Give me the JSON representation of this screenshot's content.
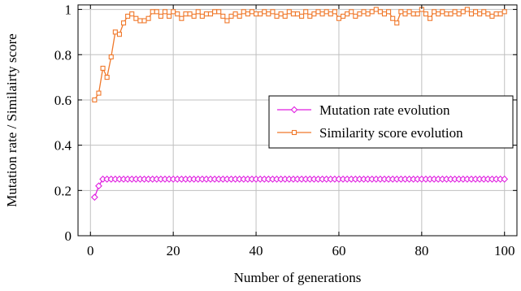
{
  "chart_data": {
    "type": "line",
    "xlabel": "Number of generations",
    "ylabel": "Mutation rate / Similairty score",
    "xlim": [
      -3,
      103
    ],
    "ylim": [
      0,
      1.02
    ],
    "xticks": [
      0,
      20,
      40,
      60,
      80,
      100
    ],
    "yticks": [
      0,
      0.2,
      0.4,
      0.6,
      0.8,
      1
    ],
    "xtick_labels": [
      "0",
      "20",
      "40",
      "60",
      "80",
      "100"
    ],
    "ytick_labels": [
      "0",
      "0.2",
      "0.4",
      "0.6",
      "0.8",
      "1"
    ],
    "grid": true,
    "legend_position": "center-right",
    "series": [
      {
        "name": "Mutation rate evolution",
        "color": "#e01ee0",
        "marker": "diamond",
        "x": [
          1,
          2,
          3,
          4,
          5,
          6,
          7,
          8,
          9,
          10,
          11,
          12,
          13,
          14,
          15,
          16,
          17,
          18,
          19,
          20,
          21,
          22,
          23,
          24,
          25,
          26,
          27,
          28,
          29,
          30,
          31,
          32,
          33,
          34,
          35,
          36,
          37,
          38,
          39,
          40,
          41,
          42,
          43,
          44,
          45,
          46,
          47,
          48,
          49,
          50,
          51,
          52,
          53,
          54,
          55,
          56,
          57,
          58,
          59,
          60,
          61,
          62,
          63,
          64,
          65,
          66,
          67,
          68,
          69,
          70,
          71,
          72,
          73,
          74,
          75,
          76,
          77,
          78,
          79,
          80,
          81,
          82,
          83,
          84,
          85,
          86,
          87,
          88,
          89,
          90,
          91,
          92,
          93,
          94,
          95,
          96,
          97,
          98,
          99,
          100
        ],
        "values": [
          0.17,
          0.22,
          0.25,
          0.25,
          0.25,
          0.25,
          0.25,
          0.25,
          0.25,
          0.25,
          0.25,
          0.25,
          0.25,
          0.25,
          0.25,
          0.25,
          0.25,
          0.25,
          0.25,
          0.25,
          0.25,
          0.25,
          0.25,
          0.25,
          0.25,
          0.25,
          0.25,
          0.25,
          0.25,
          0.25,
          0.25,
          0.25,
          0.25,
          0.25,
          0.25,
          0.25,
          0.25,
          0.25,
          0.25,
          0.25,
          0.25,
          0.25,
          0.25,
          0.25,
          0.25,
          0.25,
          0.25,
          0.25,
          0.25,
          0.25,
          0.25,
          0.25,
          0.25,
          0.25,
          0.25,
          0.25,
          0.25,
          0.25,
          0.25,
          0.25,
          0.25,
          0.25,
          0.25,
          0.25,
          0.25,
          0.25,
          0.25,
          0.25,
          0.25,
          0.25,
          0.25,
          0.25,
          0.25,
          0.25,
          0.25,
          0.25,
          0.25,
          0.25,
          0.25,
          0.25,
          0.25,
          0.25,
          0.25,
          0.25,
          0.25,
          0.25,
          0.25,
          0.25,
          0.25,
          0.25,
          0.25,
          0.25,
          0.25,
          0.25,
          0.25,
          0.25,
          0.25,
          0.25,
          0.25,
          0.25
        ]
      },
      {
        "name": "Similarity score evolution",
        "color": "#f0782a",
        "marker": "square",
        "x": [
          1,
          2,
          3,
          4,
          5,
          6,
          7,
          8,
          9,
          10,
          11,
          12,
          13,
          14,
          15,
          16,
          17,
          18,
          19,
          20,
          21,
          22,
          23,
          24,
          25,
          26,
          27,
          28,
          29,
          30,
          31,
          32,
          33,
          34,
          35,
          36,
          37,
          38,
          39,
          40,
          41,
          42,
          43,
          44,
          45,
          46,
          47,
          48,
          49,
          50,
          51,
          52,
          53,
          54,
          55,
          56,
          57,
          58,
          59,
          60,
          61,
          62,
          63,
          64,
          65,
          66,
          67,
          68,
          69,
          70,
          71,
          72,
          73,
          74,
          75,
          76,
          77,
          78,
          79,
          80,
          81,
          82,
          83,
          84,
          85,
          86,
          87,
          88,
          89,
          90,
          91,
          92,
          93,
          94,
          95,
          96,
          97,
          98,
          99,
          100
        ],
        "values": [
          0.6,
          0.63,
          0.74,
          0.7,
          0.79,
          0.9,
          0.89,
          0.94,
          0.97,
          0.98,
          0.96,
          0.95,
          0.95,
          0.96,
          0.99,
          0.99,
          0.97,
          0.99,
          0.97,
          0.99,
          0.98,
          0.96,
          0.98,
          0.98,
          0.97,
          0.99,
          0.97,
          0.98,
          0.98,
          0.99,
          0.99,
          0.97,
          0.95,
          0.97,
          0.98,
          0.97,
          0.99,
          0.98,
          0.99,
          0.98,
          0.98,
          0.99,
          0.98,
          0.99,
          0.97,
          0.98,
          0.97,
          0.99,
          0.98,
          0.98,
          0.97,
          0.99,
          0.97,
          0.98,
          0.99,
          0.98,
          0.99,
          0.98,
          0.99,
          0.96,
          0.97,
          0.98,
          0.99,
          0.97,
          0.98,
          0.99,
          0.98,
          0.99,
          1.0,
          0.99,
          0.98,
          0.99,
          0.96,
          0.94,
          0.99,
          0.98,
          0.99,
          0.98,
          0.98,
          1.0,
          0.98,
          0.96,
          0.99,
          0.98,
          0.99,
          0.98,
          0.98,
          0.99,
          0.98,
          0.99,
          1.0,
          0.98,
          0.99,
          0.98,
          0.99,
          0.98,
          0.97,
          0.98,
          0.98,
          0.99
        ]
      }
    ]
  }
}
